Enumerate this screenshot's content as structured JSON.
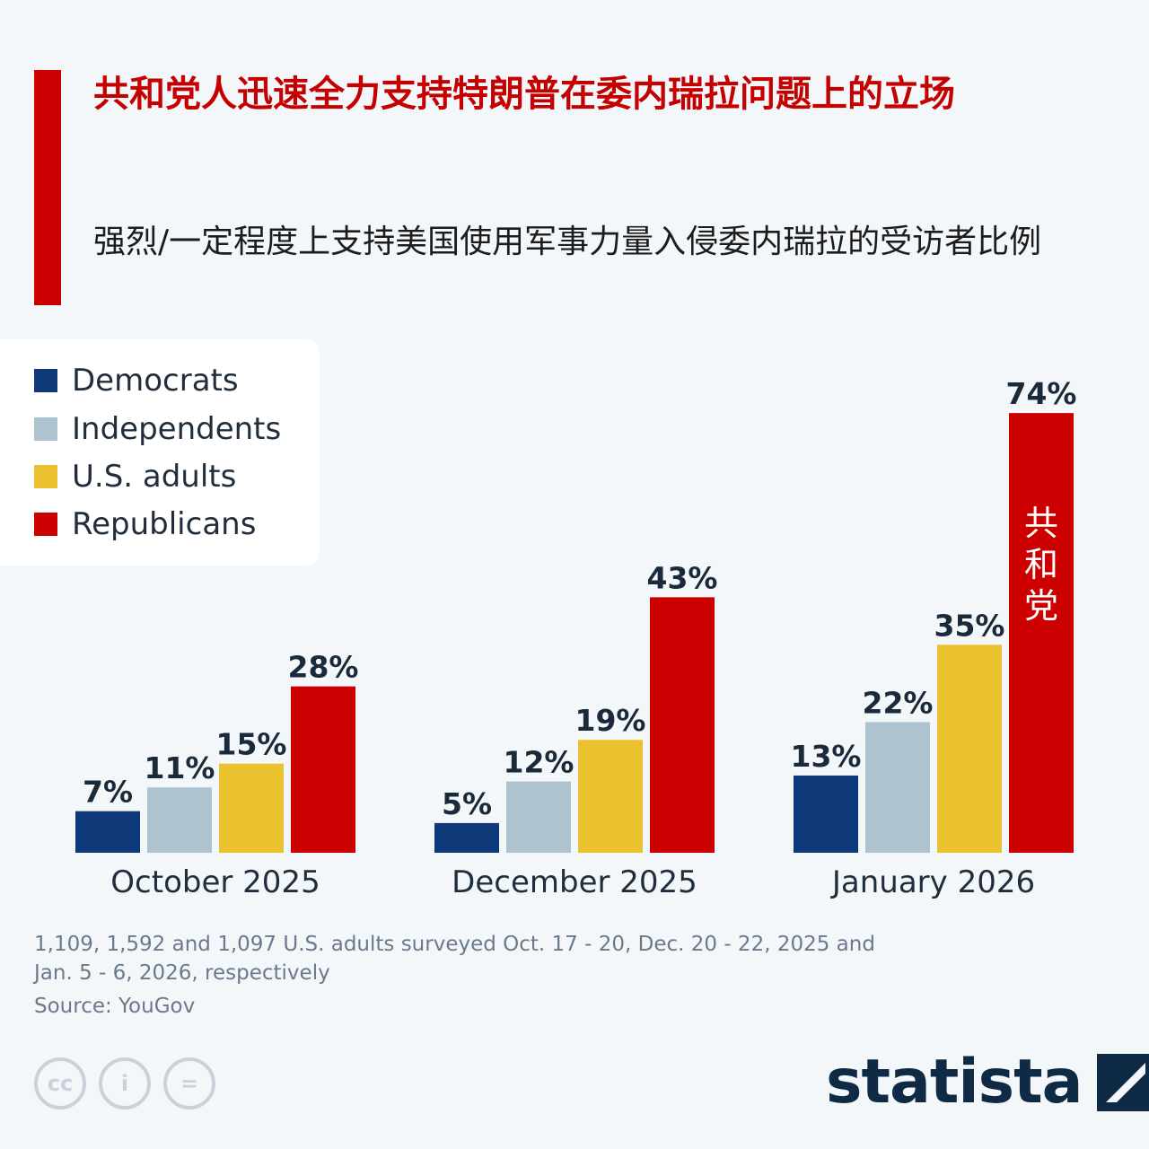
{
  "header": {
    "title": "共和党人迅速全力支持特朗普在委内瑞拉问题上的立场",
    "subtitle": "强烈/一定程度上支持美国使用军事力量入侵委内瑞拉的受访者比例"
  },
  "colors": {
    "accent": "#cc0000",
    "democrats": "#0e3a7a",
    "independents": "#adc3cf",
    "us_adults": "#ebc12f",
    "republicans": "#cc0000"
  },
  "chart_data": {
    "type": "bar",
    "categories": [
      "October 2025",
      "December 2025",
      "January 2026"
    ],
    "series": [
      {
        "name": "Democrats",
        "values": [
          7,
          5,
          13
        ],
        "labels": [
          "7%",
          "5%",
          "13%"
        ]
      },
      {
        "name": "Independents",
        "values": [
          11,
          12,
          22
        ],
        "labels": [
          "11%",
          "12%",
          "22%"
        ]
      },
      {
        "name": "U.S. adults",
        "values": [
          15,
          19,
          35
        ],
        "labels": [
          "15%",
          "19%",
          "35%"
        ]
      },
      {
        "name": "Republicans",
        "values": [
          28,
          43,
          74
        ],
        "labels": [
          "28%",
          "43%",
          "74%"
        ]
      }
    ],
    "annotation": "共和党",
    "ylim": [
      0,
      80
    ],
    "grid": false,
    "legend_position": "top-left"
  },
  "footer": {
    "notes": "1,109, 1,592 and 1,097 U.S. adults surveyed Oct. 17 - 20, Dec. 20 - 22, 2025 and Jan. 5 - 6, 2026, respectively",
    "source": "Source: YouGov",
    "brand": "statista",
    "license_icons": [
      "cc-icon",
      "attribution-icon",
      "no-derivatives-icon"
    ],
    "license_glyphs": [
      "cc",
      "i",
      "="
    ]
  }
}
